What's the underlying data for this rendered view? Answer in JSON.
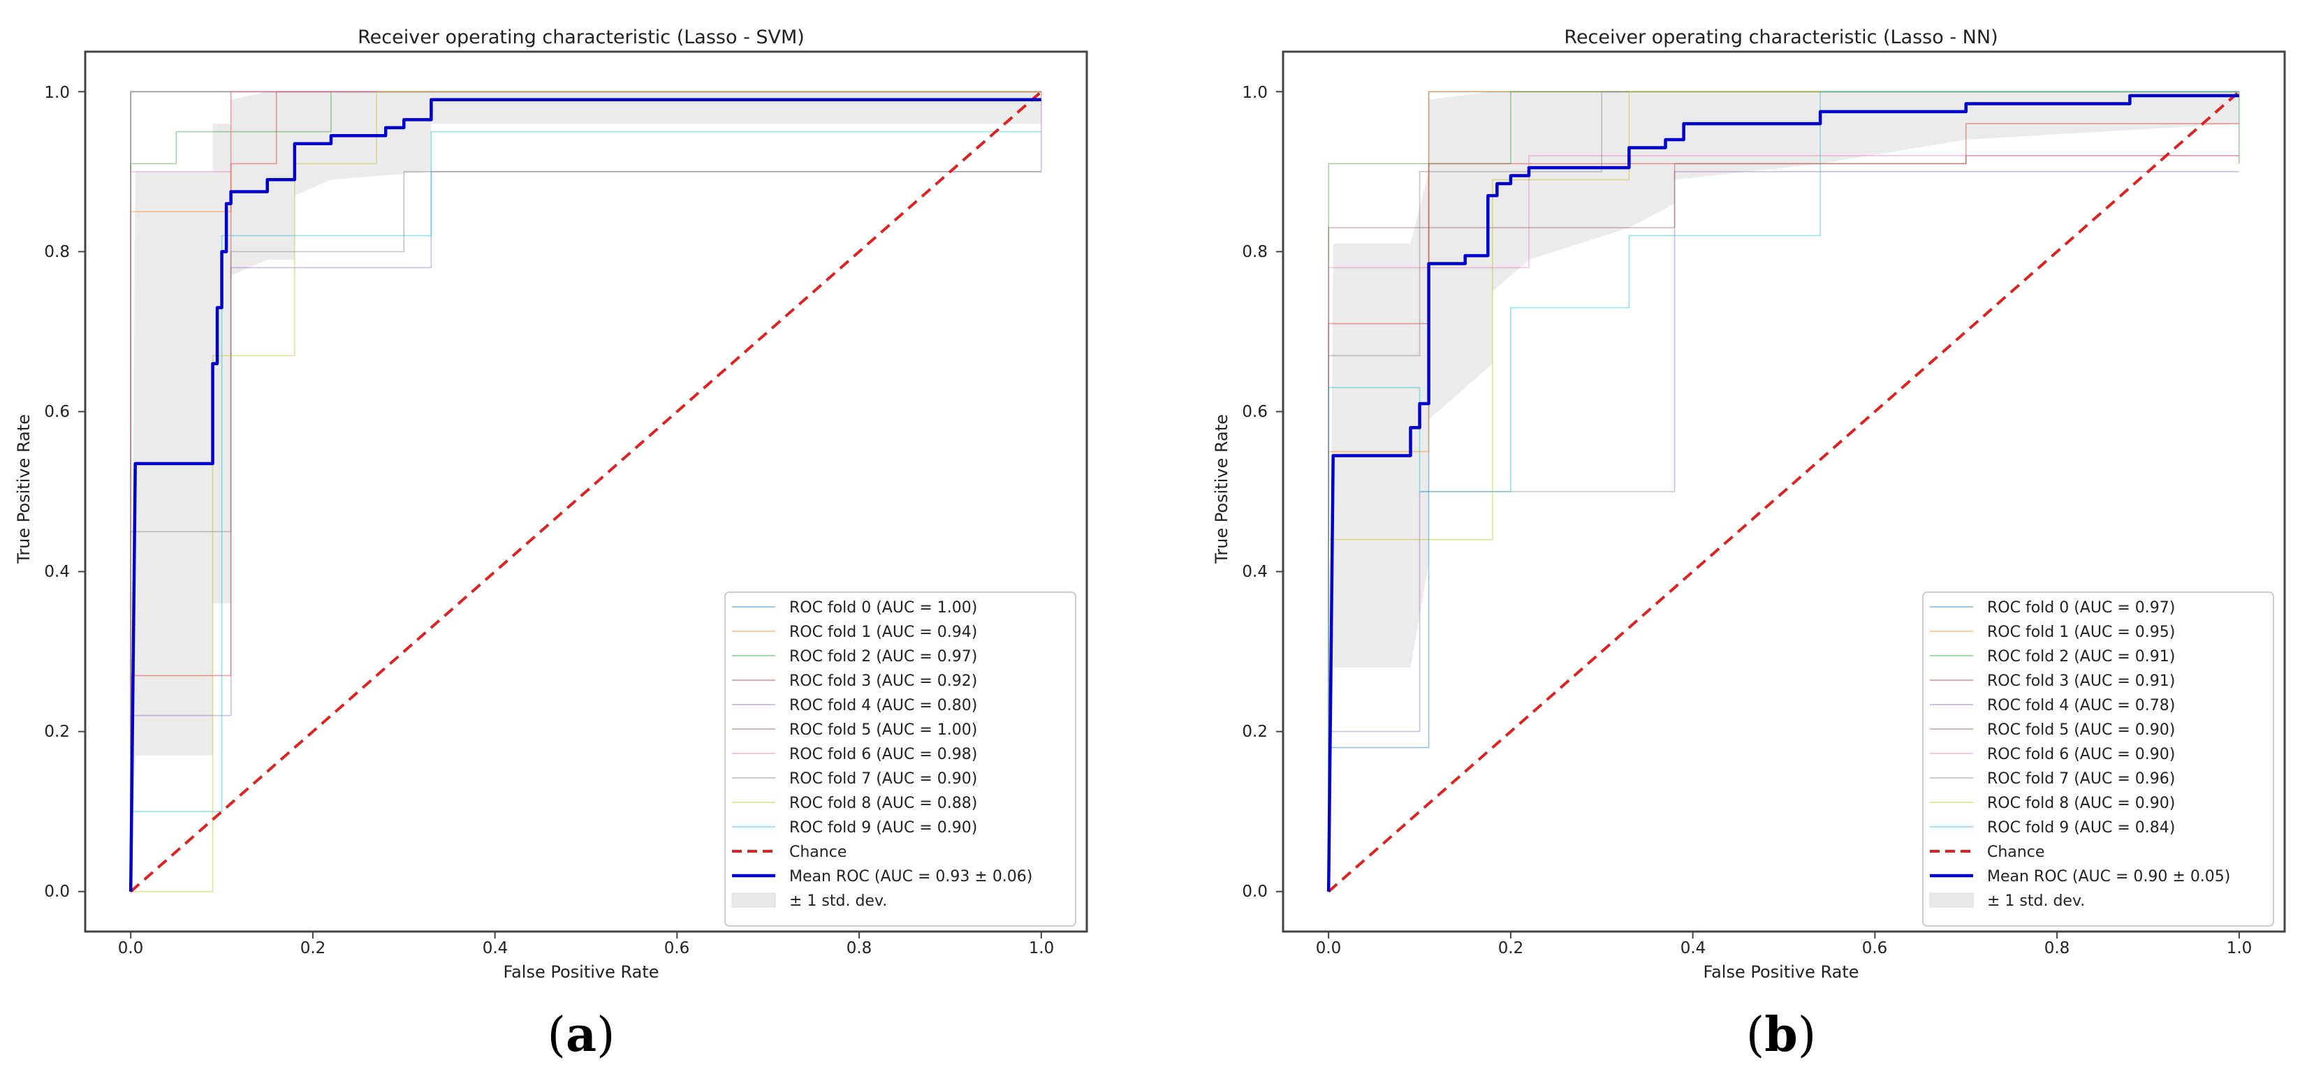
{
  "chart_data": [
    {
      "type": "line",
      "panel_label": "a",
      "title": "Receiver operating characteristic (Lasso - SVM)",
      "xlabel": "False Positive Rate",
      "ylabel": "True Positive Rate",
      "xlim": [
        -0.05,
        1.05
      ],
      "ylim": [
        -0.05,
        1.05
      ],
      "xticks": [
        "0.0",
        "0.2",
        "0.4",
        "0.6",
        "0.8",
        "1.0"
      ],
      "yticks": [
        "0.0",
        "0.2",
        "0.4",
        "0.6",
        "0.8",
        "1.0"
      ],
      "grid": false,
      "legend_position": "lower-right",
      "colors": {
        "mean": "#0000cc",
        "chance": "#dd2222",
        "band": "#e8e8e8",
        "frame": "#444444"
      },
      "folds": [
        {
          "name": "ROC fold 0 (AUC = 1.00)",
          "color": "#1f77b4",
          "x": [
            0,
            0,
            1
          ],
          "y": [
            0,
            1,
            1
          ]
        },
        {
          "name": "ROC fold 1 (AUC = 0.94)",
          "color": "#ff7f0e",
          "x": [
            0,
            0,
            0.11,
            0.11,
            1
          ],
          "y": [
            0,
            0.85,
            0.85,
            1,
            1
          ]
        },
        {
          "name": "ROC fold 2 (AUC = 0.97)",
          "color": "#2ca02c",
          "x": [
            0,
            0,
            0.05,
            0.05,
            0.22,
            0.22,
            1
          ],
          "y": [
            0,
            0.91,
            0.91,
            0.95,
            0.95,
            1,
            1
          ]
        },
        {
          "name": "ROC fold 3 (AUC = 0.92)",
          "color": "#d62728",
          "x": [
            0,
            0,
            0.11,
            0.11,
            0.16,
            0.16,
            1
          ],
          "y": [
            0,
            0.27,
            0.27,
            0.91,
            0.91,
            1,
            1
          ]
        },
        {
          "name": "ROC fold 4 (AUC = 0.80)",
          "color": "#9467bd",
          "x": [
            0,
            0,
            0.11,
            0.11,
            0.33,
            0.33,
            1,
            1
          ],
          "y": [
            0,
            0.22,
            0.22,
            0.78,
            0.78,
            0.9,
            0.9,
            1
          ]
        },
        {
          "name": "ROC fold 5 (AUC = 1.00)",
          "color": "#8c564b",
          "x": [
            0,
            0,
            1
          ],
          "y": [
            0,
            1,
            1
          ]
        },
        {
          "name": "ROC fold 6 (AUC = 0.98)",
          "color": "#e377c2",
          "x": [
            0,
            0,
            0.11,
            0.11,
            1
          ],
          "y": [
            0,
            0.9,
            0.9,
            1,
            1
          ]
        },
        {
          "name": "ROC fold 7 (AUC = 0.90)",
          "color": "#7f7f7f",
          "x": [
            0,
            0,
            0.11,
            0.11,
            0.3,
            0.3,
            1
          ],
          "y": [
            0,
            0.45,
            0.45,
            0.8,
            0.8,
            0.9,
            0.9
          ]
        },
        {
          "name": "ROC fold 8 (AUC = 0.88)",
          "color": "#bcbd22",
          "x": [
            0,
            0.09,
            0.09,
            0.18,
            0.18,
            0.27,
            0.27,
            1
          ],
          "y": [
            0,
            0,
            0.67,
            0.67,
            0.91,
            0.91,
            1,
            1
          ]
        },
        {
          "name": "ROC fold 9 (AUC = 0.90)",
          "color": "#17becf",
          "x": [
            0,
            0,
            0.1,
            0.1,
            0.33,
            0.33,
            1
          ],
          "y": [
            0,
            0.1,
            0.1,
            0.82,
            0.82,
            0.95,
            0.95
          ]
        }
      ],
      "chance": {
        "name": "Chance",
        "x": [
          0,
          1
        ],
        "y": [
          0,
          1
        ]
      },
      "mean": {
        "name": "Mean ROC (AUC = 0.93 ± 0.06)",
        "x": [
          0,
          0.005,
          0.09,
          0.09,
          0.095,
          0.095,
          0.1,
          0.1,
          0.105,
          0.105,
          0.11,
          0.11,
          0.15,
          0.15,
          0.18,
          0.18,
          0.22,
          0.22,
          0.28,
          0.28,
          0.3,
          0.3,
          0.33,
          0.33,
          1
        ],
        "y": [
          0,
          0.535,
          0.535,
          0.66,
          0.66,
          0.73,
          0.73,
          0.8,
          0.8,
          0.86,
          0.86,
          0.875,
          0.875,
          0.89,
          0.89,
          0.935,
          0.935,
          0.945,
          0.945,
          0.955,
          0.955,
          0.965,
          0.965,
          0.99,
          0.99
        ]
      },
      "band": {
        "name": "± 1 std. dev.",
        "x": [
          0,
          0.005,
          0.09,
          0.09,
          0.11,
          0.11,
          0.15,
          0.18,
          0.18,
          0.22,
          0.33,
          0.33,
          1
        ],
        "upper": [
          0,
          0.9,
          0.9,
          0.96,
          0.96,
          0.99,
          1,
          1,
          1,
          1,
          1,
          1,
          1
        ],
        "lower": [
          0,
          0.17,
          0.17,
          0.36,
          0.36,
          0.77,
          0.79,
          0.79,
          0.87,
          0.89,
          0.9,
          0.96,
          0.96
        ]
      }
    },
    {
      "type": "line",
      "panel_label": "b",
      "title": "Receiver operating characteristic (Lasso - NN)",
      "xlabel": "False Positive Rate",
      "ylabel": "True Positive Rate",
      "xlim": [
        -0.05,
        1.05
      ],
      "ylim": [
        -0.05,
        1.05
      ],
      "xticks": [
        "0.0",
        "0.2",
        "0.4",
        "0.6",
        "0.8",
        "1.0"
      ],
      "yticks": [
        "0.0",
        "0.2",
        "0.4",
        "0.6",
        "0.8",
        "1.0"
      ],
      "grid": false,
      "legend_position": "lower-right",
      "colors": {
        "mean": "#0000cc",
        "chance": "#dd2222",
        "band": "#e8e8e8",
        "frame": "#444444"
      },
      "folds": [
        {
          "name": "ROC fold 0 (AUC = 0.97)",
          "color": "#1f77b4",
          "x": [
            0,
            0,
            0.11,
            0.11,
            1
          ],
          "y": [
            0,
            0.18,
            0.18,
            1,
            1
          ]
        },
        {
          "name": "ROC fold 1 (AUC = 0.95)",
          "color": "#ff7f0e",
          "x": [
            0,
            0,
            0.11,
            0.11,
            1
          ],
          "y": [
            0,
            0.55,
            0.55,
            1,
            1
          ]
        },
        {
          "name": "ROC fold 2 (AUC = 0.91)",
          "color": "#2ca02c",
          "x": [
            0,
            0,
            0.2,
            0.2,
            1,
            1
          ],
          "y": [
            0,
            0.91,
            0.91,
            1,
            1,
            0.91
          ]
        },
        {
          "name": "ROC fold 3 (AUC = 0.91)",
          "color": "#d62728",
          "x": [
            0,
            0,
            0.11,
            0.11,
            0.7,
            0.7,
            1
          ],
          "y": [
            0,
            0.71,
            0.71,
            0.91,
            0.91,
            0.96,
            0.96
          ]
        },
        {
          "name": "ROC fold 4 (AUC = 0.78)",
          "color": "#9467bd",
          "x": [
            0,
            0,
            0.1,
            0.1,
            0.38,
            0.38,
            1
          ],
          "y": [
            0,
            0.2,
            0.2,
            0.5,
            0.5,
            0.9,
            0.9
          ]
        },
        {
          "name": "ROC fold 5 (AUC = 0.90)",
          "color": "#8c564b",
          "x": [
            0,
            0,
            0.38,
            0.38,
            0.7,
            0.7,
            1
          ],
          "y": [
            0,
            0.83,
            0.83,
            0.91,
            0.91,
            0.92,
            0.92
          ]
        },
        {
          "name": "ROC fold 6 (AUC = 0.90)",
          "color": "#e377c2",
          "x": [
            0,
            0,
            0.22,
            0.22,
            1
          ],
          "y": [
            0,
            0.78,
            0.78,
            0.92,
            0.92
          ]
        },
        {
          "name": "ROC fold 7 (AUC = 0.96)",
          "color": "#7f7f7f",
          "x": [
            0,
            0,
            0.1,
            0.1,
            0.3,
            0.3,
            1
          ],
          "y": [
            0,
            0.67,
            0.67,
            0.9,
            0.9,
            1,
            1
          ]
        },
        {
          "name": "ROC fold 8 (AUC = 0.90)",
          "color": "#bcbd22",
          "x": [
            0,
            0,
            0.18,
            0.18,
            0.33,
            0.33,
            1
          ],
          "y": [
            0,
            0.44,
            0.44,
            0.89,
            0.89,
            1,
            1
          ]
        },
        {
          "name": "ROC fold 9 (AUC = 0.84)",
          "color": "#17becf",
          "x": [
            0,
            0,
            0.1,
            0.1,
            0.2,
            0.2,
            0.33,
            0.33,
            0.54,
            0.54,
            1
          ],
          "y": [
            0,
            0.63,
            0.63,
            0.5,
            0.5,
            0.73,
            0.73,
            0.82,
            0.82,
            1,
            1
          ]
        }
      ],
      "chance": {
        "name": "Chance",
        "x": [
          0,
          1
        ],
        "y": [
          0,
          1
        ]
      },
      "mean": {
        "name": "Mean ROC (AUC = 0.90 ± 0.05)",
        "x": [
          0,
          0.005,
          0.09,
          0.09,
          0.1,
          0.1,
          0.11,
          0.11,
          0.15,
          0.15,
          0.175,
          0.175,
          0.185,
          0.185,
          0.2,
          0.2,
          0.22,
          0.22,
          0.33,
          0.33,
          0.37,
          0.37,
          0.39,
          0.39,
          0.54,
          0.54,
          0.7,
          0.7,
          0.88,
          0.88,
          1
        ],
        "y": [
          0,
          0.545,
          0.545,
          0.58,
          0.58,
          0.61,
          0.61,
          0.785,
          0.785,
          0.795,
          0.795,
          0.87,
          0.87,
          0.885,
          0.885,
          0.895,
          0.895,
          0.905,
          0.905,
          0.93,
          0.93,
          0.94,
          0.94,
          0.96,
          0.96,
          0.975,
          0.975,
          0.985,
          0.985,
          0.995,
          0.995
        ]
      },
      "band": {
        "name": "± 1 std. dev.",
        "x": [
          0,
          0.005,
          0.09,
          0.11,
          0.11,
          0.18,
          0.18,
          0.22,
          0.33,
          0.38,
          0.38,
          0.54,
          0.7,
          1
        ],
        "upper": [
          0,
          0.81,
          0.81,
          0.9,
          0.99,
          1,
          1,
          1,
          1,
          1,
          1,
          1,
          1,
          1
        ],
        "lower": [
          0,
          0.28,
          0.28,
          0.41,
          0.59,
          0.66,
          0.75,
          0.79,
          0.83,
          0.86,
          0.89,
          0.91,
          0.94,
          0.96
        ]
      }
    }
  ]
}
